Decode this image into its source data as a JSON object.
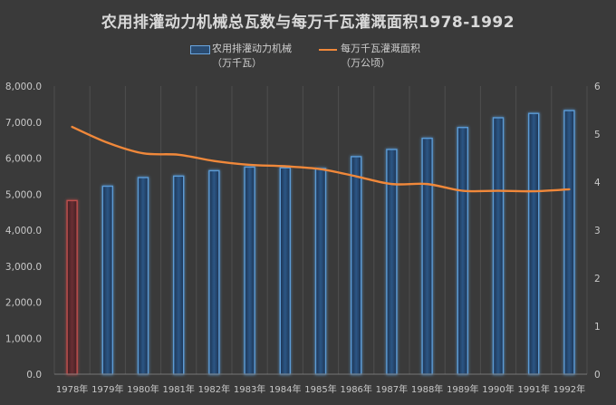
{
  "chart_data": {
    "type": "bar",
    "title": "农用排灌动力机械总瓦数与每万千瓦灌溉面积1978-1992",
    "categories": [
      "1978年",
      "1979年",
      "1980年",
      "1981年",
      "1982年",
      "1983年",
      "1984年",
      "1985年",
      "1986年",
      "1987年",
      "1988年",
      "1989年",
      "1990年",
      "1991年",
      "1992年"
    ],
    "series": [
      {
        "name": "农用排灌动力机械",
        "unit": "（万千瓦）",
        "type": "bar",
        "axis": "left",
        "color": "#5b9bd5",
        "highlight_first_color": "#c0504d",
        "values": [
          4820,
          5220,
          5460,
          5500,
          5650,
          5750,
          5730,
          5710,
          6040,
          6240,
          6550,
          6850,
          7120,
          7240,
          7320
        ]
      },
      {
        "name": "每万千瓦灌溉面积",
        "unit": "（万公顷）",
        "type": "line",
        "axis": "right",
        "color": "#f0883a",
        "values": [
          5.15,
          4.82,
          4.6,
          4.57,
          4.44,
          4.36,
          4.33,
          4.27,
          4.12,
          3.96,
          3.96,
          3.82,
          3.82,
          3.81,
          3.85
        ]
      }
    ],
    "yleft": {
      "min": 0,
      "max": 8000,
      "step": 1000,
      "ticks": [
        "0.0",
        "1,000.0",
        "2,000.0",
        "3,000.0",
        "4,000.0",
        "5,000.0",
        "6,000.0",
        "7,000.0",
        "8,000.0"
      ]
    },
    "yright": {
      "min": 0,
      "max": 6,
      "step": 1,
      "ticks": [
        "0",
        "1",
        "2",
        "3",
        "4",
        "5",
        "6"
      ]
    },
    "grid": "vertical-category",
    "legend_position": "top"
  }
}
